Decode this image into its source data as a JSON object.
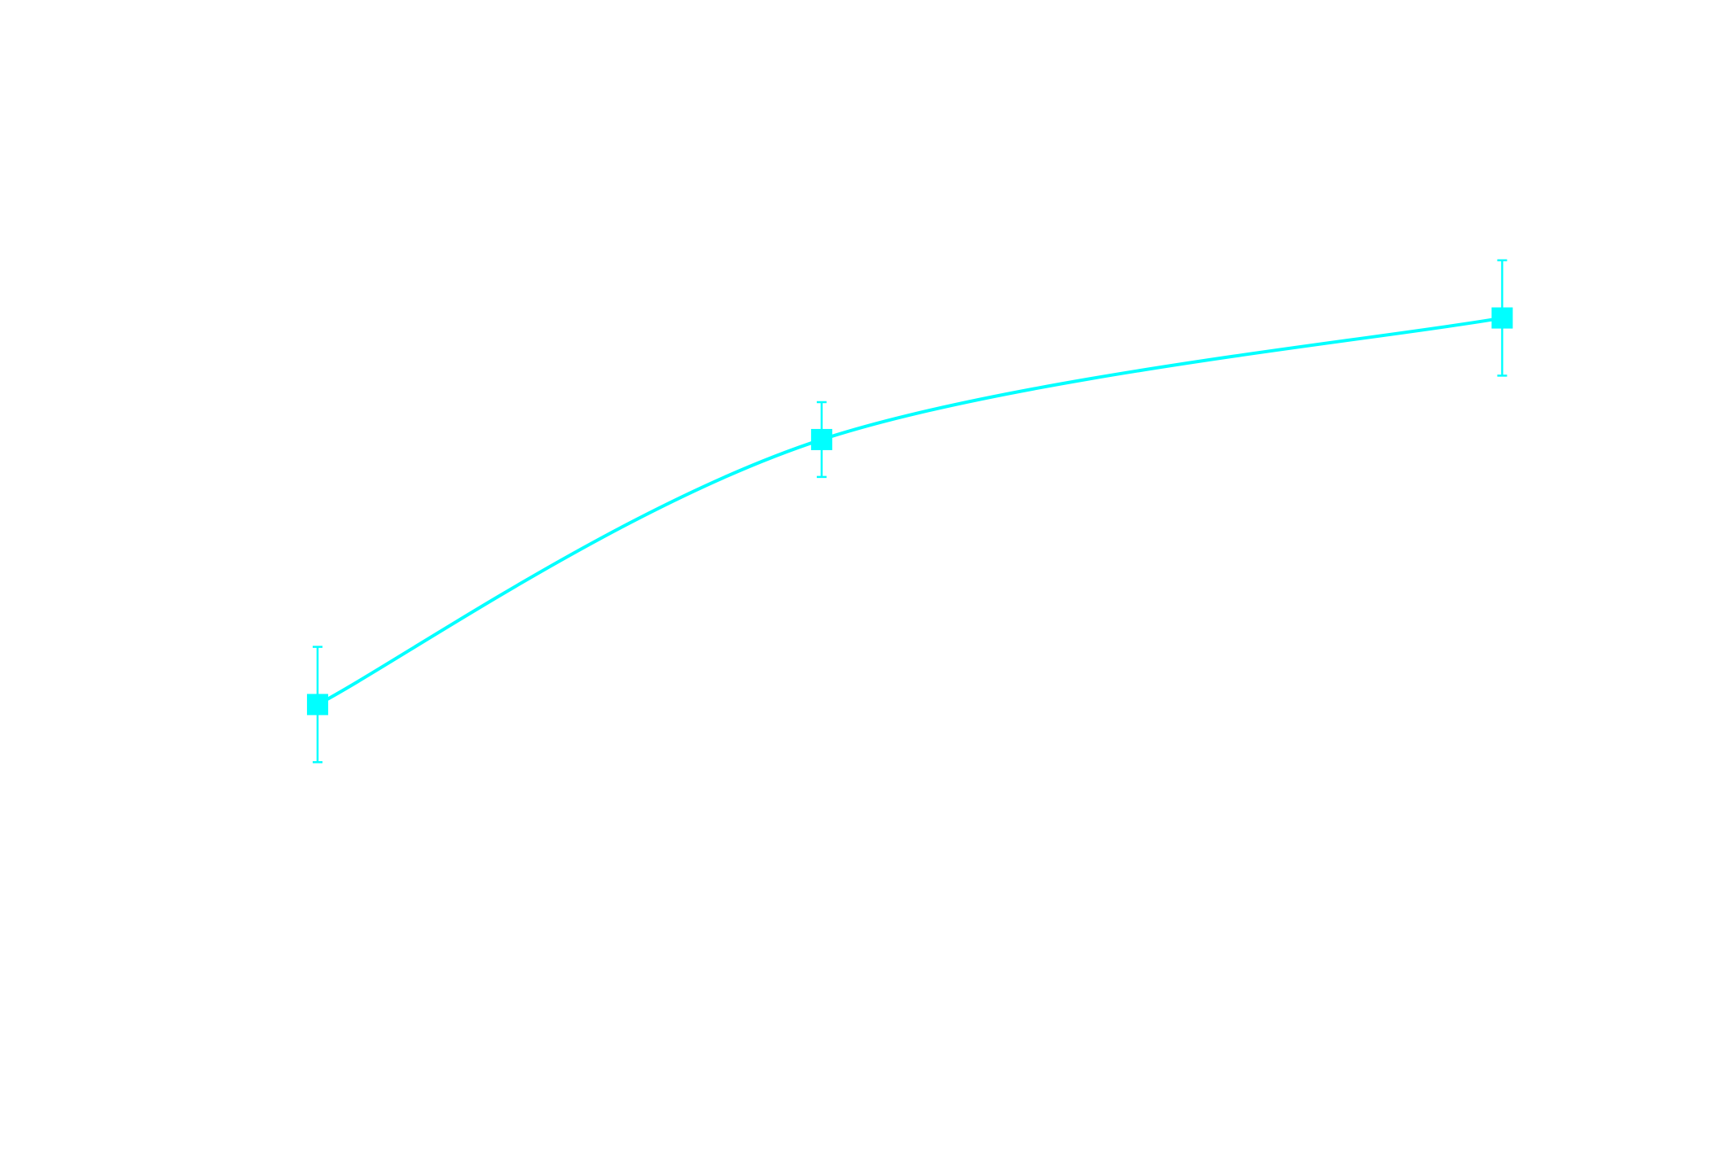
{
  "chart_data": {
    "type": "line",
    "title": "",
    "xlabel": "",
    "ylabel": "",
    "grid": false,
    "legend": "none",
    "axes_visible": false,
    "line_style": "smooth",
    "marker": "square",
    "x": [
      1,
      2,
      3.35
    ],
    "series": [
      {
        "color": "#00ffff",
        "values": [
          14.9,
          23.4,
          27.3
        ],
        "errors": [
          1.85,
          1.2,
          1.85
        ]
      }
    ],
    "xlim": [
      0.37,
      3.8
    ],
    "ylim": [
      0,
      37.5
    ]
  }
}
